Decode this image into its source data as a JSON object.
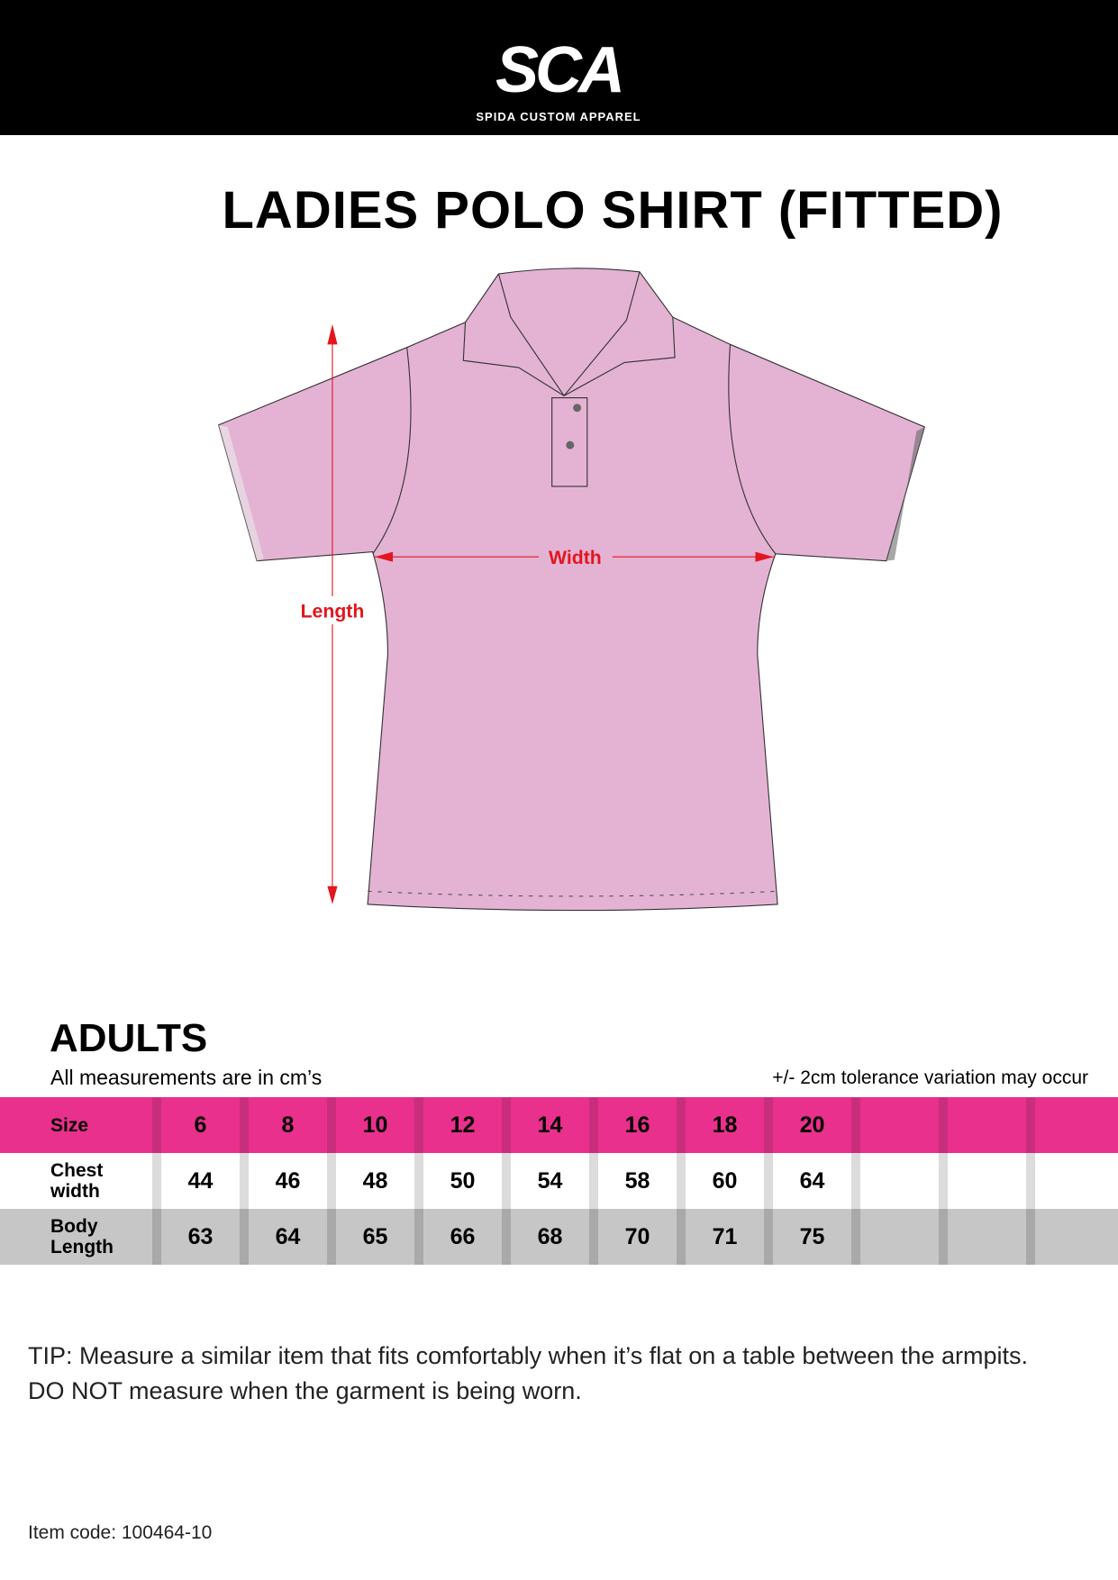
{
  "header": {
    "logo_text": "SCA",
    "logo_subtitle": "SPIDA CUSTOM APPAREL"
  },
  "title": "LADIES POLO SHIRT (FITTED)",
  "diagram": {
    "width_label": "Width",
    "length_label": "Length",
    "shirt_color": "#e4b3d4",
    "arrow_color": "#e3161e"
  },
  "section": {
    "heading": "ADULTS",
    "units_note": "All measurements are in cm’s",
    "tolerance_note": "+/- 2cm tolerance variation may occur"
  },
  "table": {
    "rows": [
      {
        "label": "Size",
        "values": [
          "6",
          "8",
          "10",
          "12",
          "14",
          "16",
          "18",
          "20",
          "",
          "",
          ""
        ]
      },
      {
        "label": "Chest width",
        "values": [
          "44",
          "46",
          "48",
          "50",
          "54",
          "58",
          "60",
          "64",
          "",
          "",
          ""
        ]
      },
      {
        "label": "Body Length",
        "values": [
          "63",
          "64",
          "65",
          "66",
          "68",
          "70",
          "71",
          "75",
          "",
          "",
          ""
        ]
      }
    ]
  },
  "tip": {
    "line1": "TIP: Measure a similar item that fits comfortably when it’s flat on a table between the armpits.",
    "line2": "DO NOT measure when the garment is being worn."
  },
  "item_code": "Item code: 100464-10",
  "colors": {
    "header_bg": "#000000",
    "pink": "#e8308c",
    "gray_row": "#c6c6c6"
  }
}
